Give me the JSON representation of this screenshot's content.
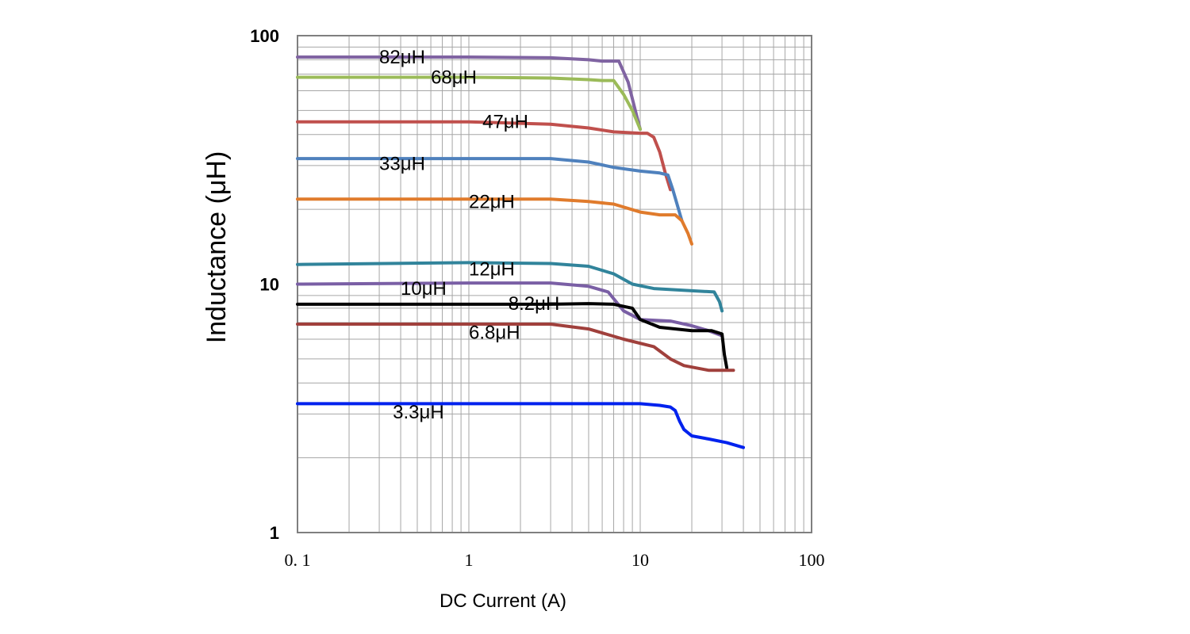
{
  "chart_data": {
    "type": "line",
    "title": "",
    "xlabel": "DC Current (A)",
    "ylabel": "Inductance (μH)",
    "xscale": "log",
    "yscale": "log",
    "xlim": [
      0.1,
      100
    ],
    "ylim": [
      1,
      100
    ],
    "grid": true,
    "xticks": [
      {
        "value": 0.1,
        "label": "0. 1"
      },
      {
        "value": 1,
        "label": "1"
      },
      {
        "value": 10,
        "label": "10"
      },
      {
        "value": 100,
        "label": "100"
      }
    ],
    "yticks": [
      {
        "value": 1,
        "label": "1"
      },
      {
        "value": 10,
        "label": "10"
      },
      {
        "value": 100,
        "label": "100"
      }
    ],
    "series": [
      {
        "name": "82μH",
        "label": "82μH",
        "color": "#8064a2",
        "label_at": [
          0.3,
          82
        ],
        "points": [
          [
            0.1,
            82
          ],
          [
            1,
            82
          ],
          [
            3,
            81.5
          ],
          [
            5,
            80
          ],
          [
            6,
            79
          ],
          [
            7.5,
            79
          ],
          [
            8.5,
            65
          ],
          [
            9.5,
            48
          ],
          [
            10,
            42
          ]
        ]
      },
      {
        "name": "68μH",
        "label": "68μH",
        "color": "#9bbb59",
        "label_at": [
          0.6,
          68
        ],
        "points": [
          [
            0.1,
            68
          ],
          [
            1,
            68
          ],
          [
            3,
            67.5
          ],
          [
            5,
            66.5
          ],
          [
            6,
            66
          ],
          [
            7,
            66
          ],
          [
            8,
            58
          ],
          [
            9,
            50
          ],
          [
            10,
            42
          ]
        ]
      },
      {
        "name": "47μH",
        "label": "47μH",
        "color": "#c0504d",
        "label_at": [
          1.2,
          45
        ],
        "points": [
          [
            0.1,
            45
          ],
          [
            1,
            45
          ],
          [
            3,
            44
          ],
          [
            5,
            42.5
          ],
          [
            7,
            41
          ],
          [
            10,
            40.5
          ],
          [
            11,
            40.5
          ],
          [
            12,
            39
          ],
          [
            13,
            34
          ],
          [
            14,
            28
          ],
          [
            15,
            24
          ]
        ]
      },
      {
        "name": "33μH",
        "label": "33μH",
        "color": "#4f81bd",
        "label_at": [
          0.3,
          30.5
        ],
        "points": [
          [
            0.1,
            32
          ],
          [
            1,
            32
          ],
          [
            3,
            32
          ],
          [
            5,
            31
          ],
          [
            7,
            29.5
          ],
          [
            10,
            28.5
          ],
          [
            13,
            28
          ],
          [
            14.5,
            27.5
          ],
          [
            15.5,
            24
          ],
          [
            17.5,
            18
          ]
        ]
      },
      {
        "name": "22μH",
        "label": "22μH",
        "color": "#e07b2c",
        "label_at": [
          1.0,
          21.5
        ],
        "points": [
          [
            0.1,
            22
          ],
          [
            1,
            22
          ],
          [
            3,
            22
          ],
          [
            5,
            21.5
          ],
          [
            7,
            21
          ],
          [
            10,
            19.5
          ],
          [
            13,
            19
          ],
          [
            16,
            19
          ],
          [
            17.5,
            18
          ],
          [
            19,
            16
          ],
          [
            20,
            14.5
          ]
        ]
      },
      {
        "name": "12μH",
        "label": "12μH",
        "color": "#31849b",
        "label_at": [
          1.0,
          11.5
        ],
        "points": [
          [
            0.1,
            12
          ],
          [
            1,
            12.2
          ],
          [
            3,
            12.1
          ],
          [
            5,
            11.8
          ],
          [
            7,
            11
          ],
          [
            9,
            10
          ],
          [
            12,
            9.6
          ],
          [
            20,
            9.4
          ],
          [
            27,
            9.3
          ],
          [
            29,
            8.5
          ],
          [
            30,
            7.8
          ]
        ]
      },
      {
        "name": "10μH",
        "label": "10μH",
        "color": "#7a5fa5",
        "label_at": [
          0.4,
          9.6
        ],
        "points": [
          [
            0.1,
            10
          ],
          [
            1,
            10.1
          ],
          [
            3,
            10.1
          ],
          [
            5,
            9.8
          ],
          [
            6.5,
            9.3
          ],
          [
            8,
            7.8
          ],
          [
            10,
            7.2
          ],
          [
            15,
            7.1
          ],
          [
            20,
            6.8
          ],
          [
            25,
            6.5
          ],
          [
            30,
            6.2
          ]
        ]
      },
      {
        "name": "8.2μH",
        "label": "8.2μH",
        "color": "#000000",
        "label_at": [
          1.7,
          8.35
        ],
        "points": [
          [
            0.1,
            8.3
          ],
          [
            1,
            8.3
          ],
          [
            3,
            8.3
          ],
          [
            5,
            8.35
          ],
          [
            7,
            8.3
          ],
          [
            9,
            8
          ],
          [
            10,
            7.2
          ],
          [
            13,
            6.7
          ],
          [
            20,
            6.5
          ],
          [
            26,
            6.5
          ],
          [
            30,
            6.3
          ],
          [
            31,
            5.2
          ],
          [
            32,
            4.6
          ]
        ]
      },
      {
        "name": "6.8μH",
        "label": "6.8μH",
        "color": "#a0403c",
        "label_at": [
          1.0,
          6.4
        ],
        "points": [
          [
            0.1,
            6.9
          ],
          [
            1,
            6.9
          ],
          [
            3,
            6.9
          ],
          [
            5,
            6.6
          ],
          [
            8,
            6
          ],
          [
            12,
            5.6
          ],
          [
            15,
            5
          ],
          [
            18,
            4.7
          ],
          [
            25,
            4.5
          ],
          [
            35,
            4.5
          ]
        ]
      },
      {
        "name": "3.3μH",
        "label": "3.3μH",
        "color": "#0022ee",
        "label_at": [
          0.36,
          3.05
        ],
        "points": [
          [
            0.1,
            3.3
          ],
          [
            1,
            3.3
          ],
          [
            5,
            3.3
          ],
          [
            10,
            3.3
          ],
          [
            13,
            3.25
          ],
          [
            15,
            3.2
          ],
          [
            16,
            3.1
          ],
          [
            17,
            2.8
          ],
          [
            18,
            2.6
          ],
          [
            20,
            2.45
          ],
          [
            25,
            2.38
          ],
          [
            32,
            2.3
          ],
          [
            40,
            2.2
          ]
        ]
      }
    ]
  }
}
